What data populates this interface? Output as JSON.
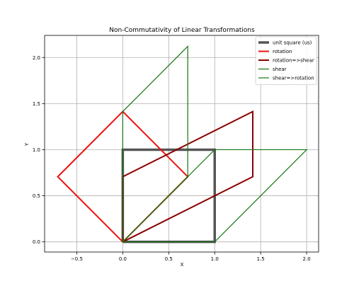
{
  "chart_data": {
    "type": "line",
    "title": "Non-Commutativity of Linear Transformations",
    "xlabel": "X",
    "ylabel": "Y",
    "xlim": [
      -0.85,
      2.13
    ],
    "ylim": [
      -0.11,
      2.24
    ],
    "xticks": [
      -0.5,
      0.0,
      0.5,
      1.0,
      1.5,
      2.0
    ],
    "xtick_labels": [
      "−0.5",
      "0.0",
      "0.5",
      "1.0",
      "1.5",
      "2.0"
    ],
    "yticks": [
      0.0,
      0.5,
      1.0,
      1.5,
      2.0
    ],
    "ytick_labels": [
      "0.0",
      "0.5",
      "1.0",
      "1.5",
      "2.0"
    ],
    "grid": true,
    "legend_position": "top-right",
    "series": [
      {
        "name": "unit square (us)",
        "color": "#555555",
        "width": "thick",
        "points": [
          [
            0,
            0
          ],
          [
            1,
            0
          ],
          [
            1,
            1
          ],
          [
            0,
            1
          ],
          [
            0,
            0
          ]
        ]
      },
      {
        "name": "rotation",
        "color": "#ee1111",
        "width": "medium",
        "points": [
          [
            0,
            0
          ],
          [
            0.707,
            0.707
          ],
          [
            0,
            1.414
          ],
          [
            -0.707,
            0.707
          ],
          [
            0,
            0
          ]
        ]
      },
      {
        "name": "rotation=>shear",
        "color": "#8b0000",
        "width": "medium",
        "points": [
          [
            0,
            0
          ],
          [
            1.414,
            0.707
          ],
          [
            1.414,
            1.414
          ],
          [
            0,
            0.707
          ],
          [
            0,
            0
          ]
        ]
      },
      {
        "name": "shear",
        "color": "#117711",
        "width": "thin",
        "points": [
          [
            0,
            0
          ],
          [
            1,
            0
          ],
          [
            2,
            1
          ],
          [
            1,
            1
          ],
          [
            0,
            0
          ]
        ]
      },
      {
        "name": "shear=>rotation",
        "color": "#117711",
        "width": "thin",
        "points": [
          [
            0,
            0
          ],
          [
            0.707,
            0.707
          ],
          [
            0.707,
            2.121
          ],
          [
            0,
            1.414
          ],
          [
            0,
            0
          ]
        ]
      }
    ]
  }
}
